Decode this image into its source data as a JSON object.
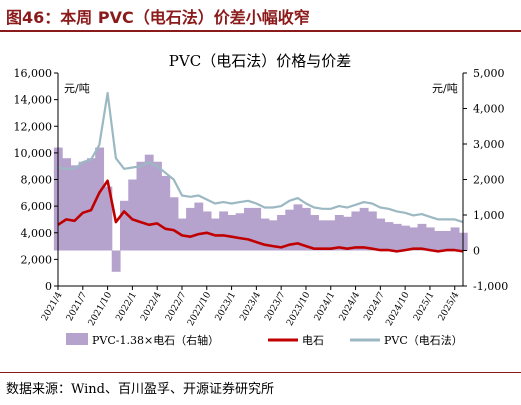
{
  "header": {
    "figure_title": "图46：本周 PVC（电石法）价差小幅收窄",
    "source": "数据来源：Wind、百川盈孚、开源证券研究所"
  },
  "chart_data": {
    "type": "line",
    "title": "PVC（电石法）价格与价差",
    "y_left_unit": "元/吨",
    "y_right_unit": "元/吨",
    "ylim_left": [
      0,
      16000
    ],
    "yticks_left": [
      "0",
      "2,000",
      "4,000",
      "6,000",
      "8,000",
      "10,000",
      "12,000",
      "14,000",
      "16,000"
    ],
    "ylim_right": [
      -1000,
      5000
    ],
    "yticks_right": [
      "-1,000",
      "0",
      "1,000",
      "2,000",
      "3,000",
      "4,000",
      "5,000"
    ],
    "x_tick_labels": [
      "2021/4",
      "2021/7",
      "2021/10",
      "2022/1",
      "2022/4",
      "2022/7",
      "2022/10",
      "2023/1",
      "2023/4",
      "2023/7",
      "2023/10",
      "2024/1",
      "2024/4",
      "2024/7",
      "2024/10",
      "2025/1",
      "2025/4"
    ],
    "grid": false,
    "legend_position": "bottom",
    "colors": {
      "spread": "#b6a3cd",
      "carbide": "#c00000",
      "pvc": "#9cb9c3"
    },
    "series": [
      {
        "name": "PVC-1.38×电石（右轴）",
        "type": "area",
        "axis": "right",
        "x": [
          "2021/4",
          "2021/5",
          "2021/6",
          "2021/7",
          "2021/8",
          "2021/9",
          "2021/10",
          "2021/11",
          "2021/12",
          "2022/1",
          "2022/2",
          "2022/3",
          "2022/4",
          "2022/5",
          "2022/6",
          "2022/7",
          "2022/8",
          "2022/9",
          "2022/10",
          "2022/11",
          "2022/12",
          "2023/1",
          "2023/2",
          "2023/3",
          "2023/4",
          "2023/5",
          "2023/6",
          "2023/7",
          "2023/8",
          "2023/9",
          "2023/10",
          "2023/11",
          "2023/12",
          "2024/1",
          "2024/2",
          "2024/3",
          "2024/4",
          "2024/5",
          "2024/6",
          "2024/7",
          "2024/8",
          "2024/9",
          "2024/10",
          "2024/11",
          "2024/12",
          "2025/1",
          "2025/2",
          "2025/3",
          "2025/4",
          "2025/5"
        ],
        "values": [
          2900,
          2600,
          2400,
          2500,
          2600,
          2900,
          1800,
          -600,
          1400,
          2000,
          2500,
          2700,
          2500,
          2100,
          1500,
          900,
          1200,
          1350,
          1100,
          900,
          1100,
          1000,
          1050,
          1200,
          1200,
          900,
          850,
          1000,
          1150,
          1300,
          1200,
          1000,
          850,
          850,
          1000,
          950,
          1100,
          1200,
          1100,
          900,
          800,
          750,
          700,
          650,
          750,
          650,
          550,
          550,
          650,
          500
        ]
      },
      {
        "name": "电石",
        "type": "line",
        "axis": "left",
        "x": [
          "2021/4",
          "2021/5",
          "2021/6",
          "2021/7",
          "2021/8",
          "2021/9",
          "2021/10",
          "2021/11",
          "2021/12",
          "2022/1",
          "2022/2",
          "2022/3",
          "2022/4",
          "2022/5",
          "2022/6",
          "2022/7",
          "2022/8",
          "2022/9",
          "2022/10",
          "2022/11",
          "2022/12",
          "2023/1",
          "2023/2",
          "2023/3",
          "2023/4",
          "2023/5",
          "2023/6",
          "2023/7",
          "2023/8",
          "2023/9",
          "2023/10",
          "2023/11",
          "2023/12",
          "2024/1",
          "2024/2",
          "2024/3",
          "2024/4",
          "2024/5",
          "2024/6",
          "2024/7",
          "2024/8",
          "2024/9",
          "2024/10",
          "2024/11",
          "2024/12",
          "2025/1",
          "2025/2",
          "2025/3",
          "2025/4",
          "2025/5"
        ],
        "values": [
          4600,
          5000,
          4900,
          5500,
          5700,
          7000,
          7900,
          4800,
          5600,
          5000,
          4800,
          4600,
          4700,
          4300,
          4200,
          3800,
          3700,
          3900,
          4000,
          3800,
          3800,
          3700,
          3600,
          3500,
          3300,
          3100,
          3000,
          2900,
          3100,
          3200,
          3000,
          2800,
          2800,
          2800,
          2900,
          2800,
          2900,
          2900,
          2800,
          2700,
          2700,
          2600,
          2700,
          2800,
          2800,
          2700,
          2600,
          2700,
          2700,
          2600
        ]
      },
      {
        "name": "PVC（电石法）",
        "type": "line",
        "axis": "left",
        "x": [
          "2021/4",
          "2021/5",
          "2021/6",
          "2021/7",
          "2021/8",
          "2021/9",
          "2021/10",
          "2021/11",
          "2021/12",
          "2022/1",
          "2022/2",
          "2022/3",
          "2022/4",
          "2022/5",
          "2022/6",
          "2022/7",
          "2022/8",
          "2022/9",
          "2022/10",
          "2022/11",
          "2022/12",
          "2023/1",
          "2023/2",
          "2023/3",
          "2023/4",
          "2023/5",
          "2023/6",
          "2023/7",
          "2023/8",
          "2023/9",
          "2023/10",
          "2023/11",
          "2023/12",
          "2024/1",
          "2024/2",
          "2024/3",
          "2024/4",
          "2024/5",
          "2024/6",
          "2024/7",
          "2024/8",
          "2024/9",
          "2024/10",
          "2024/11",
          "2024/12",
          "2025/1",
          "2025/2",
          "2025/3",
          "2025/4",
          "2025/5"
        ],
        "values": [
          8900,
          8800,
          8800,
          9300,
          9500,
          10600,
          14500,
          9600,
          8800,
          8900,
          9000,
          9300,
          9000,
          8500,
          8000,
          6800,
          6700,
          6800,
          6500,
          6200,
          6300,
          6200,
          6300,
          6400,
          6200,
          5900,
          5900,
          6000,
          6400,
          6600,
          6200,
          5900,
          5800,
          5800,
          6000,
          5900,
          6100,
          6300,
          6200,
          5900,
          5800,
          5600,
          5500,
          5300,
          5400,
          5200,
          5000,
          5000,
          5000,
          4800
        ]
      }
    ]
  }
}
